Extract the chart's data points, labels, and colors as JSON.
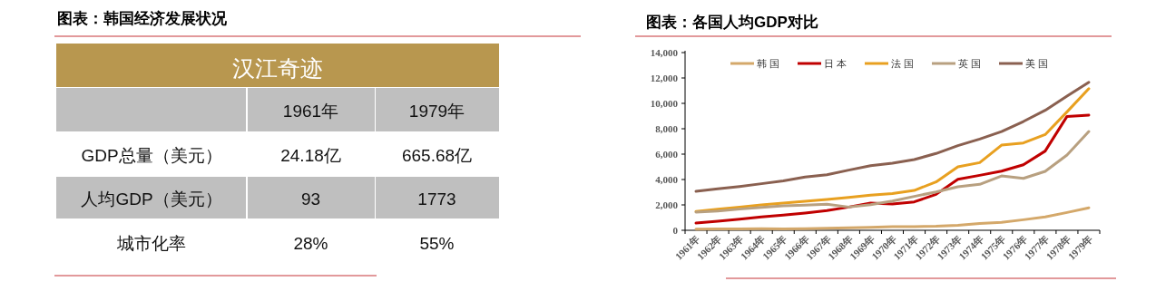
{
  "chart_data": [
    {
      "type": "other",
      "title": "图表：韩国经济发展状况",
      "annotations": [
        "汉江奇迹",
        "1961年",
        "1979年",
        "GDP总量（美元）",
        "24.18亿",
        "665.68亿",
        "人均GDP（美元）",
        "93",
        "1773",
        "城市化率",
        "28%",
        "55%"
      ]
    },
    {
      "type": "line",
      "title": "图表：各国人均GDP对比",
      "categories": [
        "1961年",
        "1962年",
        "1963年",
        "1964年",
        "1965年",
        "1966年",
        "1967年",
        "1968年",
        "1969年",
        "1970年",
        "1971年",
        "1972年",
        "1973年",
        "1974年",
        "1975年",
        "1976年",
        "1977年",
        "1978年",
        "1979年"
      ],
      "series": [
        {
          "name": "韩国",
          "color": "#d4a86a",
          "values": [
            90,
            100,
            100,
            120,
            110,
            130,
            160,
            200,
            240,
            280,
            290,
            320,
            400,
            540,
            620,
            830,
            1050,
            1400,
            1773
          ]
        },
        {
          "name": "日本",
          "color": "#c00000",
          "values": [
            570,
            710,
            880,
            1050,
            1190,
            1360,
            1550,
            1830,
            2140,
            2070,
            2240,
            2830,
            4020,
            4330,
            4660,
            5160,
            6240,
            8970,
            9070
          ]
        },
        {
          "name": "法国",
          "color": "#e8a020",
          "values": [
            1480,
            1670,
            1830,
            2000,
            2140,
            2280,
            2430,
            2590,
            2760,
            2900,
            3140,
            3810,
            5000,
            5330,
            6710,
            6880,
            7540,
            9330,
            11160
          ]
        },
        {
          "name": "英国",
          "color": "#b8a080",
          "values": [
            1430,
            1520,
            1670,
            1810,
            1930,
            1980,
            2050,
            1830,
            2020,
            2310,
            2670,
            3020,
            3430,
            3620,
            4280,
            4090,
            4640,
            5930,
            7780
          ]
        },
        {
          "name": "美国",
          "color": "#8a6050",
          "values": [
            3070,
            3260,
            3450,
            3670,
            3900,
            4190,
            4380,
            4740,
            5090,
            5280,
            5570,
            6050,
            6670,
            7190,
            7780,
            8570,
            9450,
            10570,
            11660
          ]
        }
      ],
      "ylim": [
        0,
        14000
      ],
      "yticks": [
        0,
        {
          "value": 2000,
          "label": "2,000"
        },
        {
          "value": 4000,
          "label": "4,000"
        },
        {
          "value": 6000,
          "label": "6,000"
        },
        {
          "value": 8000,
          "label": "8,000"
        },
        {
          "value": 10000,
          "label": "10,000"
        },
        {
          "value": 12000,
          "label": "12,000"
        },
        {
          "value": 14000,
          "label": "14,000"
        }
      ],
      "legend": "top",
      "marker": "none",
      "line_style": "solid",
      "grid": false
    }
  ]
}
